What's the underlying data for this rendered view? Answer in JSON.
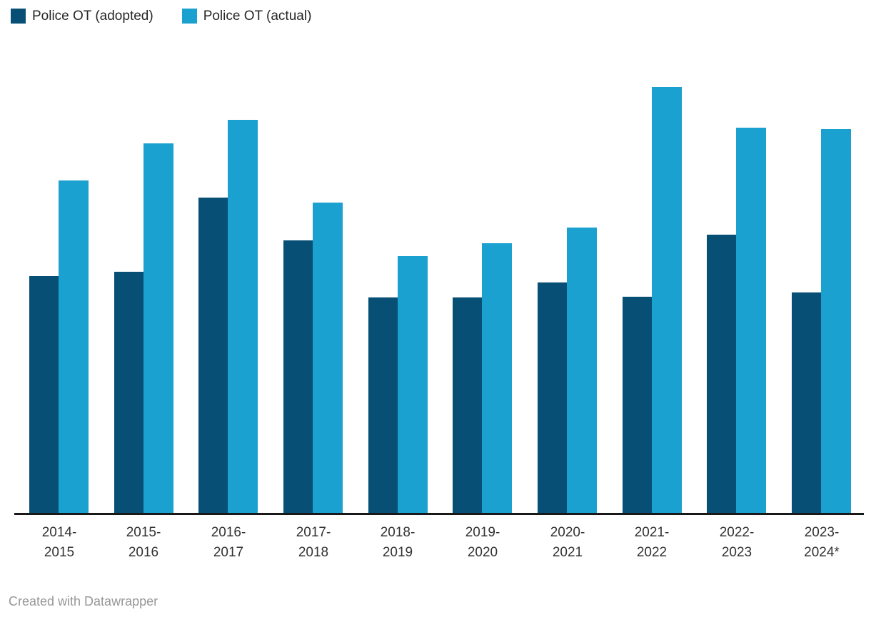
{
  "page": {
    "background": "#ffffff"
  },
  "legend": {
    "position": "top-left",
    "items": [
      {
        "label": "Police OT (adopted)",
        "color": "#074f75"
      },
      {
        "label": "Police OT (actual)",
        "color": "#1ba1cf"
      }
    ]
  },
  "chart_data": {
    "type": "bar",
    "title": "",
    "xlabel": "",
    "ylabel": "",
    "categories": [
      "2014-2015",
      "2015-2016",
      "2016-2017",
      "2017-2018",
      "2018-2019",
      "2019-2020",
      "2020-2021",
      "2021-2022",
      "2022-2023",
      "2023-2024*"
    ],
    "series": [
      {
        "name": "Police OT (adopted)",
        "color": "#074f75",
        "values": [
          55.7,
          56.7,
          74.1,
          64.0,
          50.7,
          50.7,
          54.2,
          50.8,
          65.4,
          51.8
        ]
      },
      {
        "name": "Police OT (actual)",
        "color": "#1ba1cf",
        "values": [
          78.1,
          86.8,
          92.3,
          72.9,
          60.4,
          63.4,
          67.1,
          100.0,
          90.5,
          90.1
        ]
      }
    ],
    "ylim": [
      0,
      100
    ],
    "value_scale": "relative index (no y-axis shown; tallest bar = 100)",
    "grid": false,
    "y_axis_visible": false,
    "legend_position": "top-left"
  },
  "footer": {
    "credit": "Created with Datawrapper"
  }
}
